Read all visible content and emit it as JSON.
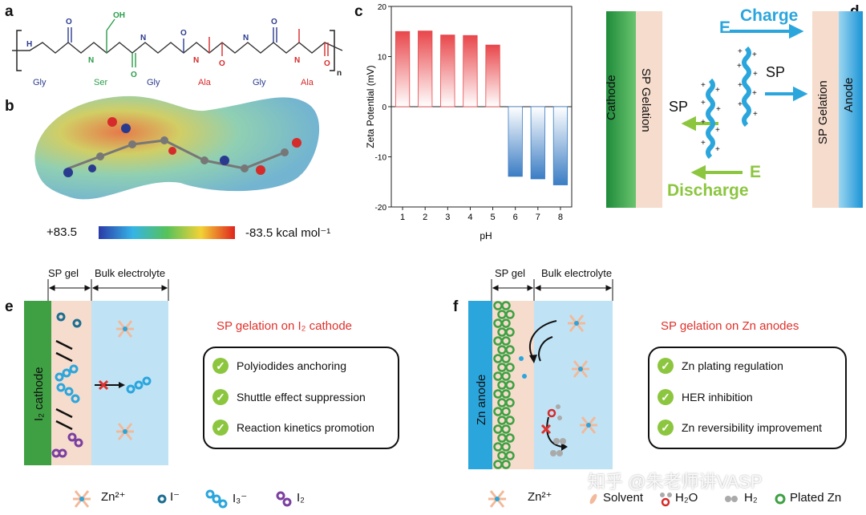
{
  "panels": {
    "a": "a",
    "b": "b",
    "c": "c",
    "d": "d",
    "e": "e",
    "f": "f"
  },
  "panel_a": {
    "residues": [
      "Gly",
      "Ser",
      "Gly",
      "Ala",
      "Gly",
      "Ala"
    ],
    "oh": "OH",
    "n": "n",
    "h": "H",
    "nh": "N",
    "o": "O"
  },
  "panel_b": {
    "cb_left": "+83.5",
    "cb_right": "-83.5 kcal mol⁻¹"
  },
  "chart_data": {
    "type": "bar",
    "categories": [
      "1",
      "2",
      "3",
      "4",
      "5",
      "6",
      "7",
      "8"
    ],
    "values": [
      15.0,
      15.1,
      14.3,
      14.2,
      12.3,
      -13.9,
      -14.4,
      -15.6
    ],
    "xlabel": "pH",
    "ylabel": "Zeta Potential (mV)",
    "ylim": [
      -20,
      20
    ],
    "yticks": [
      "20",
      "10",
      "0",
      "-10",
      "-20"
    ],
    "colors": {
      "positive": "#e8474b",
      "negative": "#3b7dc4"
    }
  },
  "panel_d": {
    "cathode": "Cathode",
    "sp_gel_left": "SP Gelation",
    "sp_gel_right": "SP Gelation",
    "anode": "Anode",
    "e_top": "E",
    "charge": "Charge",
    "sp_right": "SP",
    "sp_left": "SP",
    "e_bottom": "E",
    "discharge": "Discharge"
  },
  "panel_e": {
    "sp_gel": "SP gel",
    "bulk": "Bulk electrolyte",
    "electrode": "I₂ cathode",
    "title": "SP gelation on I₂ cathode",
    "items": [
      "Polyiodides anchoring",
      "Shuttle effect suppression",
      "Reaction kinetics promotion"
    ],
    "legend": {
      "zn": "Zn²⁺",
      "i_minus": "I⁻",
      "i3": "I₃⁻",
      "i2": "I₂"
    }
  },
  "panel_f": {
    "sp_gel": "SP gel",
    "bulk": "Bulk electrolyte",
    "electrode": "Zn anode",
    "title": "SP gelation on Zn anodes",
    "items": [
      "Zn plating regulation",
      "HER inhibition",
      "Zn reversibility improvement"
    ],
    "legend": {
      "zn": "Zn²⁺",
      "solvent": "Solvent",
      "h2o": "H₂O",
      "h2": "H₂",
      "plated": "Plated Zn"
    }
  },
  "watermark": "知乎 @朱老师讲VASP",
  "check_glyph": "✓"
}
